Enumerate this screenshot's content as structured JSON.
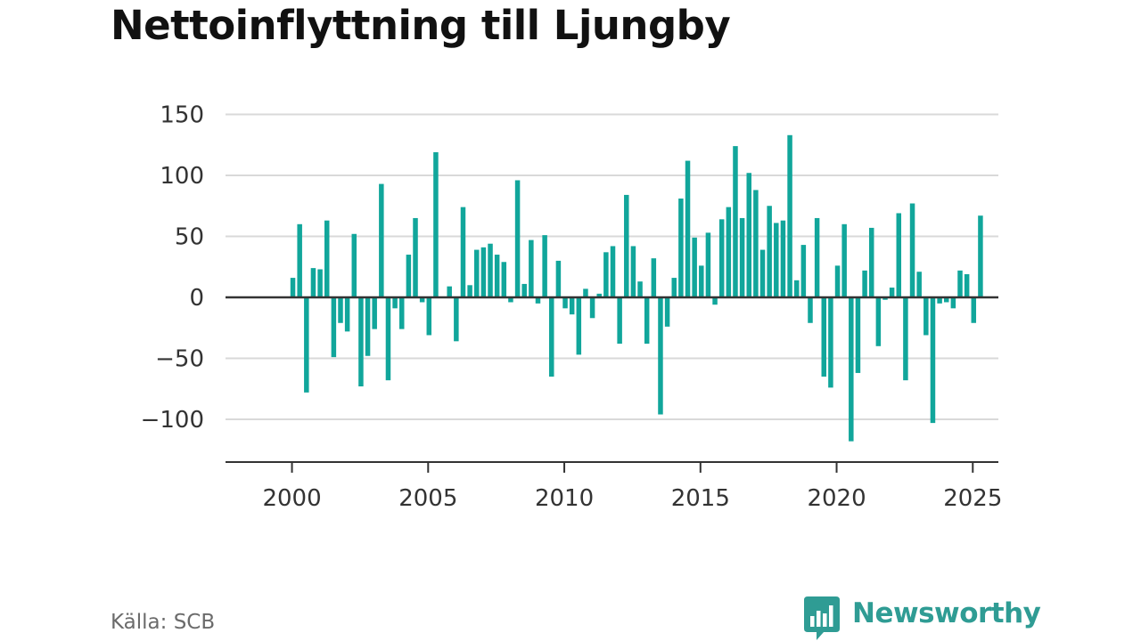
{
  "title": "Nettoinflyttning till Ljungby",
  "source": "Källa: SCB",
  "logo": {
    "text": "Newsworthy",
    "icon": "newsworthy-bar-chart-icon",
    "color": "#2f9c94"
  },
  "colors": {
    "bar": "#11a69b",
    "grid": "#d9d9d9",
    "axis": "#333333"
  },
  "chart_data": {
    "type": "bar",
    "title": "Nettoinflyttning till Ljungby",
    "xlabel": "",
    "ylabel": "",
    "frequency": "quarterly",
    "ylim": [
      -135,
      150
    ],
    "xlim": [
      1997.56,
      2025.94
    ],
    "yticks": [
      150,
      100,
      50,
      0,
      -50,
      -100
    ],
    "ytick_labels": [
      "150",
      "100",
      "50",
      "0",
      "−50",
      "−100"
    ],
    "xticks": [
      2000,
      2005,
      2010,
      2015,
      2020,
      2025
    ],
    "xtick_labels": [
      "2000",
      "2005",
      "2010",
      "2015",
      "2020",
      "2025"
    ],
    "grid": true,
    "legend": "none",
    "series": [
      {
        "values": [
          16,
          60,
          -78,
          24,
          23,
          63,
          -49,
          -21,
          -28,
          52,
          -73,
          -48,
          -26,
          93,
          -68,
          -9,
          -26,
          35,
          65,
          -4,
          -31,
          119,
          0,
          9,
          -36,
          74,
          10,
          39,
          41,
          44,
          35,
          29,
          -4,
          96,
          11,
          47,
          -5,
          51,
          -65,
          30,
          -9,
          -14,
          -47,
          7,
          -17,
          3,
          37,
          42,
          -38,
          84,
          42,
          13,
          -38,
          32,
          -96,
          -24,
          16,
          81,
          112,
          49,
          26,
          53,
          -6,
          64,
          74,
          124,
          65,
          102,
          88,
          39,
          75,
          61,
          63,
          133,
          14,
          43,
          -21,
          65,
          -65,
          -74,
          26,
          60,
          -118,
          -62,
          22,
          57,
          -40,
          -2,
          8,
          69,
          -68,
          77,
          21,
          -31,
          -103,
          -5,
          -4,
          -9,
          22,
          19,
          -21,
          67
        ]
      }
    ]
  }
}
